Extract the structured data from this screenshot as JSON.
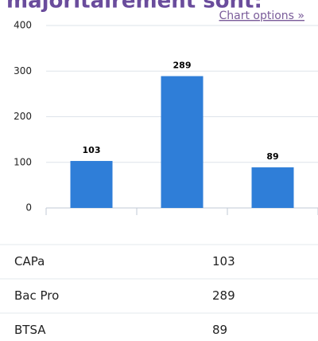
{
  "chart_data": {
    "type": "bar",
    "title": "majoritairement sont:",
    "link": "Chart options »",
    "categories": [
      "CAPa",
      "Bac Pro",
      "BTSA"
    ],
    "values": [
      103,
      289,
      89
    ],
    "color": "#2f7ed8",
    "ylim": [
      0,
      400
    ],
    "yticks": [
      0,
      100,
      200,
      300,
      400
    ],
    "grid": true
  }
}
